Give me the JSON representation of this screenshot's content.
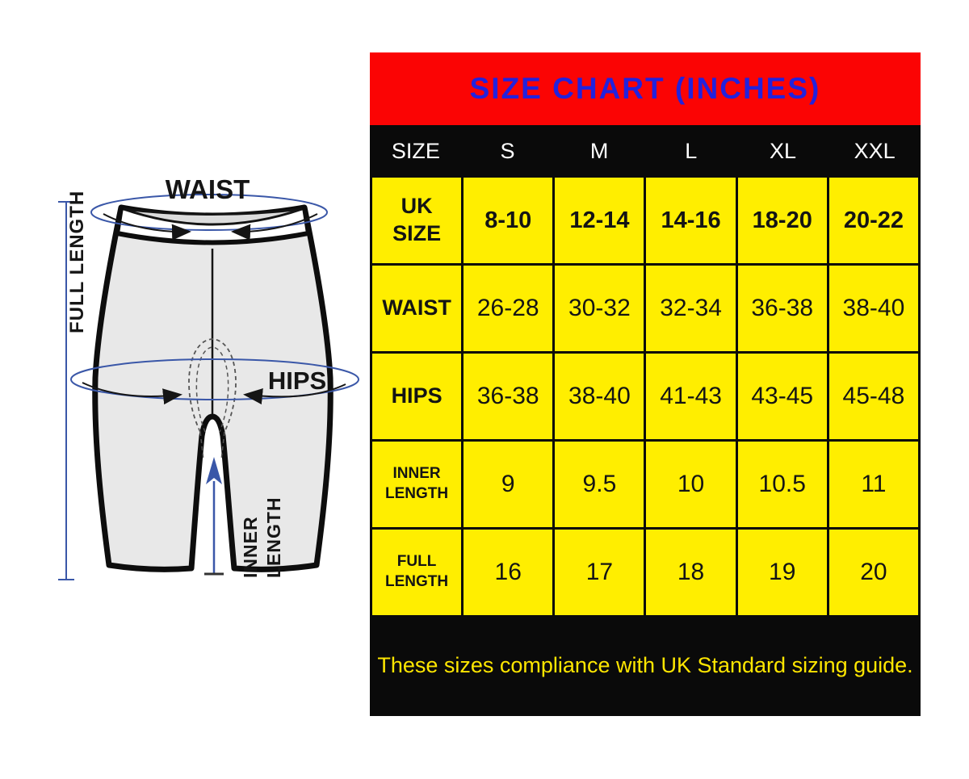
{
  "diagram": {
    "waist_label": "WAIST",
    "hips_label": "HIPS",
    "full_length_label": "FULL LENGTH",
    "inner_length_line1": "INNER",
    "inner_length_line2": "LENGTH"
  },
  "table": {
    "title": "SIZE CHART (INCHES)",
    "columns": [
      "SIZE",
      "S",
      "M",
      "L",
      "XL",
      "XXL"
    ],
    "rows": [
      {
        "label": "UK SIZE",
        "values": [
          "8-10",
          "12-14",
          "14-16",
          "18-20",
          "20-22"
        ]
      },
      {
        "label": "WAIST",
        "values": [
          "26-28",
          "30-32",
          "32-34",
          "36-38",
          "38-40"
        ]
      },
      {
        "label": "HIPS",
        "values": [
          "36-38",
          "38-40",
          "41-43",
          "43-45",
          "45-48"
        ]
      },
      {
        "label": "INNER LENGTH",
        "values": [
          "9",
          "9.5",
          "10",
          "10.5",
          "11"
        ]
      },
      {
        "label": "FULL LENGTH",
        "values": [
          "16",
          "17",
          "18",
          "19",
          "20"
        ]
      }
    ],
    "footer": "These sizes compliance with UK Standard sizing guide."
  },
  "colors": {
    "header_red": "#fb0404",
    "title_blue": "#2222dd",
    "cell_yellow": "#ffee00",
    "footer_text_yellow": "#fee600",
    "measurement_blue": "#3a57a8",
    "shorts_fill_gray": "#e8e8e8"
  },
  "chart_data": {
    "type": "table",
    "title": "SIZE CHART (INCHES)",
    "units": "inches",
    "columns": [
      "SIZE",
      "S",
      "M",
      "L",
      "XL",
      "XXL"
    ],
    "rows": [
      [
        "UK SIZE",
        "8-10",
        "12-14",
        "14-16",
        "18-20",
        "20-22"
      ],
      [
        "WAIST",
        "26-28",
        "30-32",
        "32-34",
        "36-38",
        "38-40"
      ],
      [
        "HIPS",
        "36-38",
        "38-40",
        "41-43",
        "43-45",
        "45-48"
      ],
      [
        "INNER LENGTH",
        "9",
        "9.5",
        "10",
        "10.5",
        "11"
      ],
      [
        "FULL LENGTH",
        "16",
        "17",
        "18",
        "19",
        "20"
      ]
    ],
    "note": "These sizes compliance with UK Standard sizing guide."
  }
}
